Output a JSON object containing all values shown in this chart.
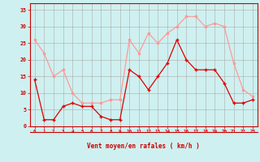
{
  "x": [
    0,
    1,
    2,
    3,
    4,
    5,
    6,
    7,
    8,
    9,
    10,
    11,
    12,
    13,
    14,
    15,
    16,
    17,
    18,
    19,
    20,
    21,
    22,
    23
  ],
  "vent_moyen": [
    14,
    2,
    2,
    6,
    7,
    6,
    6,
    3,
    2,
    2,
    17,
    15,
    11,
    15,
    19,
    26,
    20,
    17,
    17,
    17,
    13,
    7,
    7,
    8
  ],
  "rafales": [
    26,
    22,
    15,
    17,
    10,
    7,
    7,
    7,
    8,
    8,
    26,
    22,
    28,
    25,
    28,
    30,
    33,
    33,
    30,
    31,
    30,
    19,
    11,
    9
  ],
  "bg_color": "#cff0f0",
  "grid_color": "#aaaaaa",
  "moyen_color": "#dd0000",
  "rafales_color": "#ff9999",
  "xlabel": "Vent moyen/en rafales ( km/h )",
  "yticks": [
    0,
    5,
    10,
    15,
    20,
    25,
    30,
    35
  ],
  "xlim": [
    -0.5,
    23.5
  ],
  "ylim": [
    0,
    37
  ]
}
